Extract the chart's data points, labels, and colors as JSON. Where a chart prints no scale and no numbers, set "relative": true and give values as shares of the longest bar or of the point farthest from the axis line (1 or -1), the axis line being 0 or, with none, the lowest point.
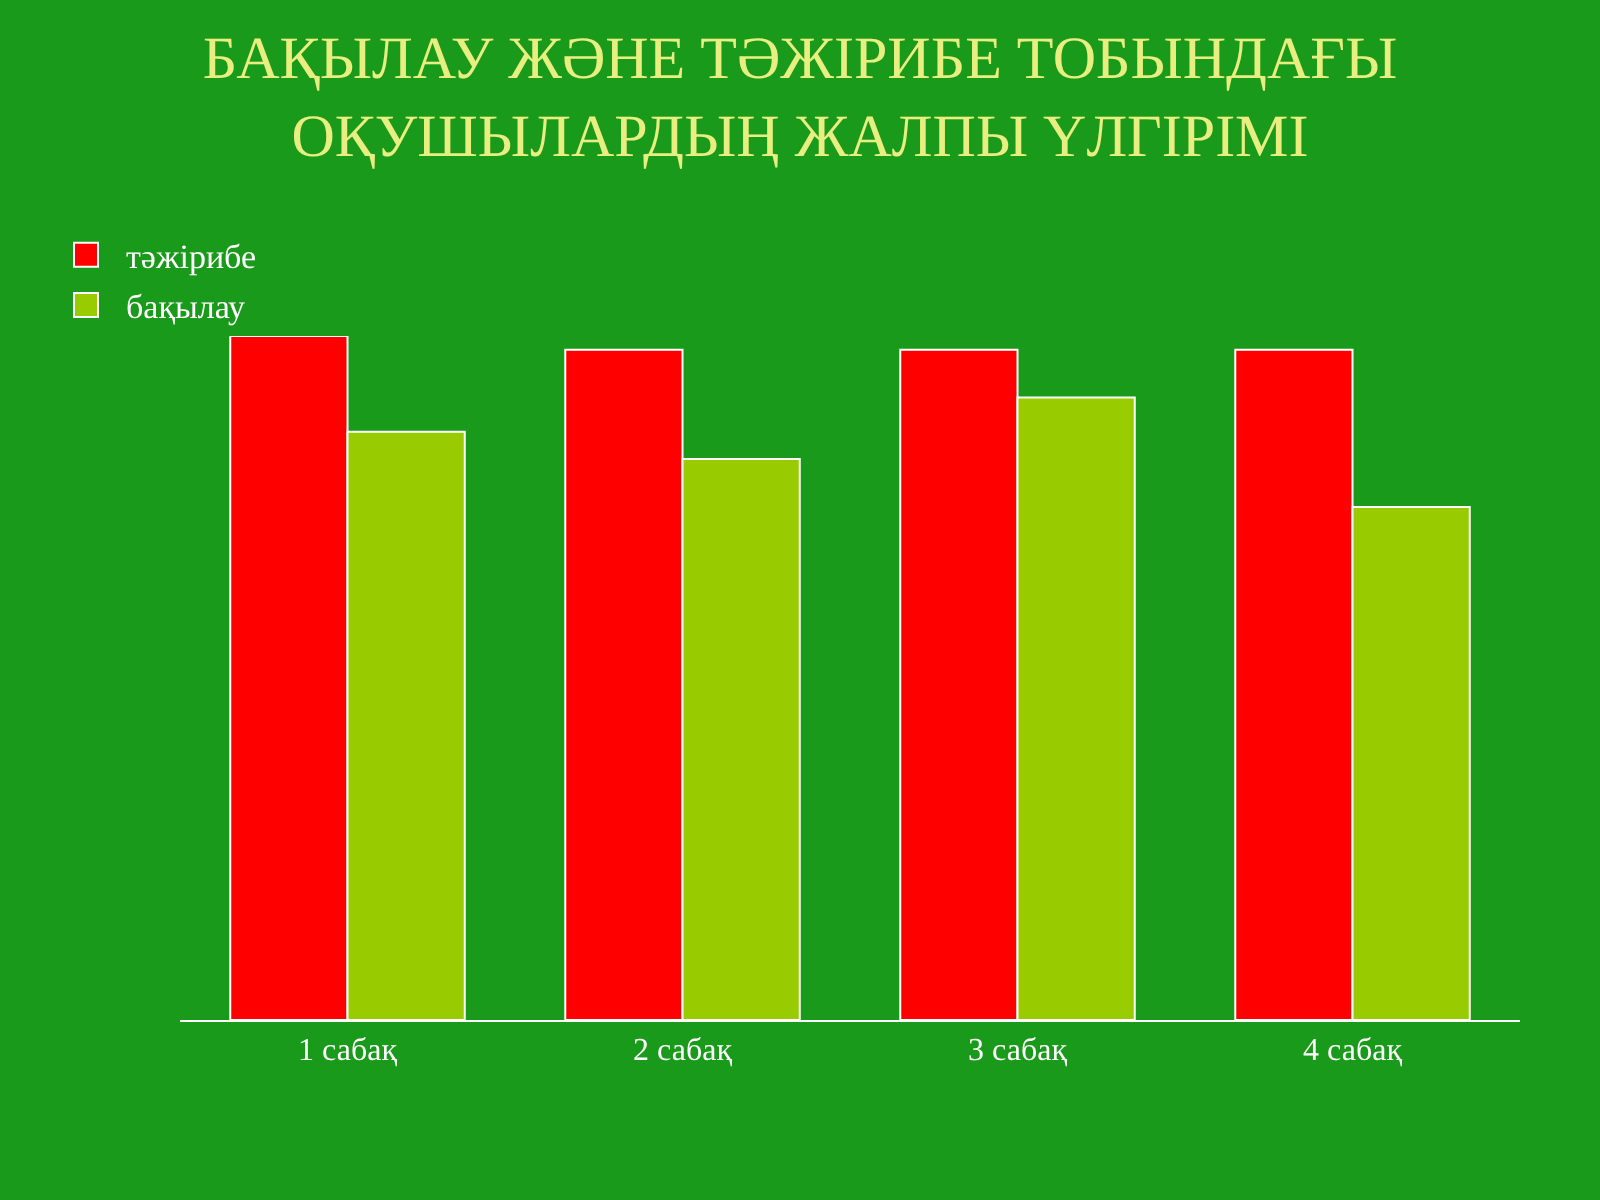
{
  "chart_data": {
    "type": "bar",
    "title": "БАҚЫЛАУ ЖӘНЕ ТӘЖІРИБЕ ТОБЫНДАҒЫ ОҚУШЫЛАРДЫҢ ЖАЛПЫ ҮЛГІРІМІ",
    "relative": true,
    "legend": "top left",
    "categories": [
      "1 сабақ",
      "2 сабақ",
      "3 сабақ",
      "4 сабақ"
    ],
    "series": [
      {
        "name": "тәжірибе",
        "color": "#ff0000",
        "values": [
          1,
          0.98,
          0.98,
          0.98
        ]
      },
      {
        "name": "бақылау",
        "color": "#99cc00",
        "values": [
          0.86,
          0.82,
          0.91,
          0.75
        ]
      }
    ]
  }
}
